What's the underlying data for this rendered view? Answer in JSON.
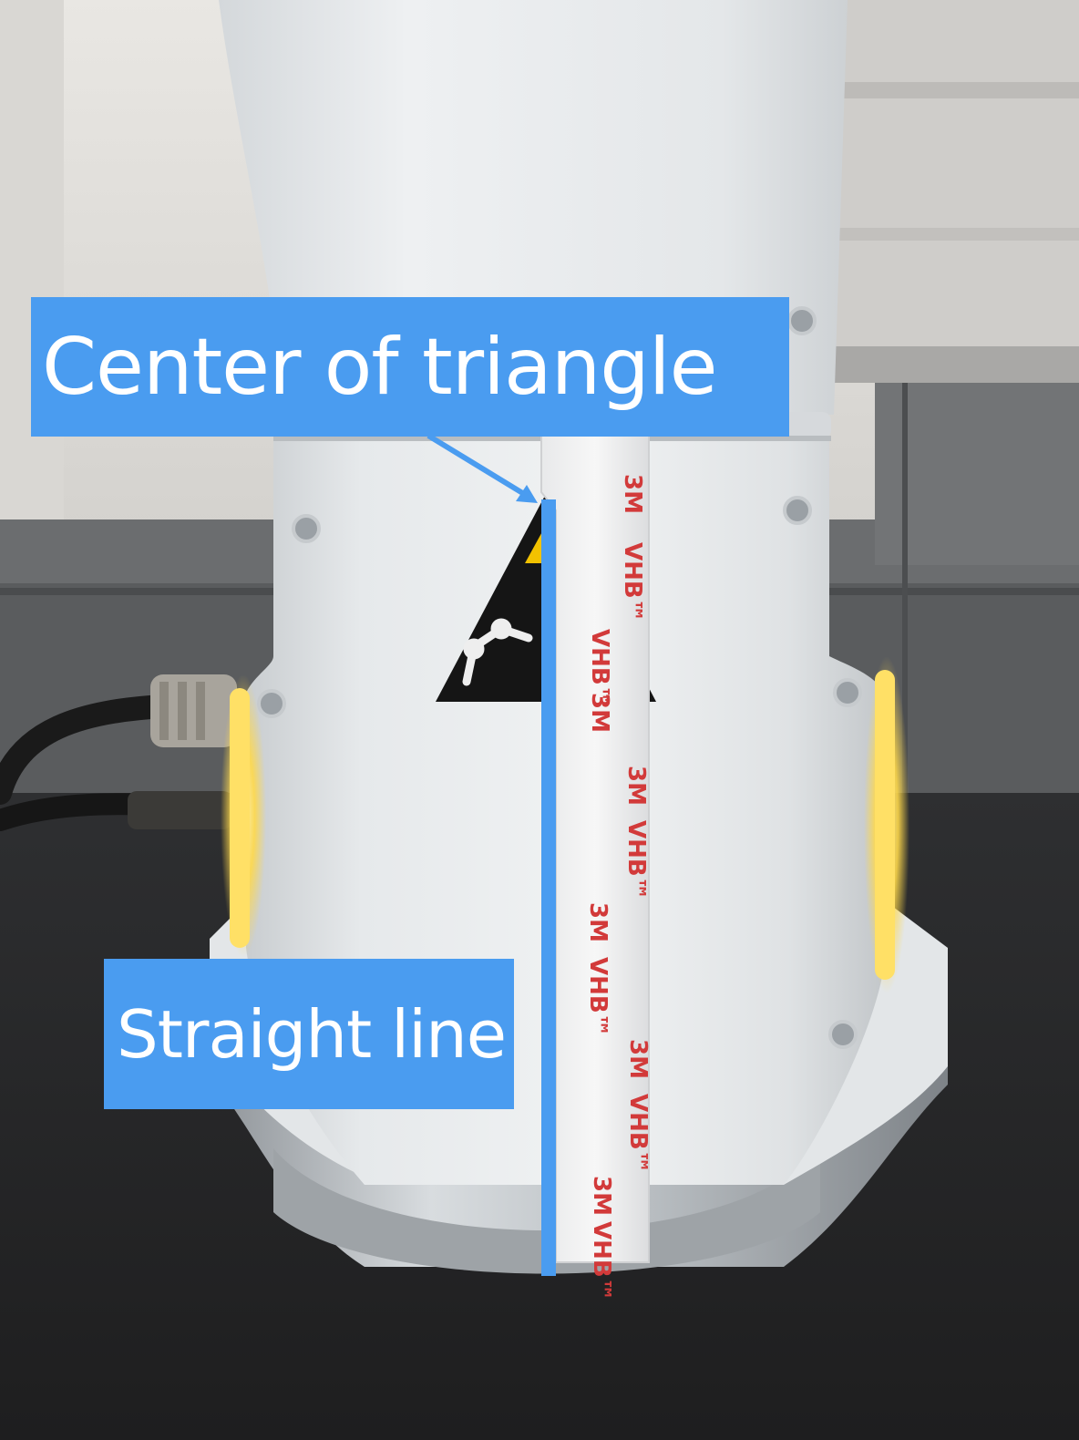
{
  "annotations": {
    "top_label": "Center of  triangle",
    "bottom_label": "Straight line"
  },
  "tape": {
    "brand_text": "3M",
    "product_text": "VHB™"
  },
  "colors": {
    "callout_bg": "#4a9cf0",
    "callout_text": "#ffffff",
    "marker_line": "#4a9cf0",
    "led_glow": "#ffd94a",
    "tape_print": "#d23a3a"
  }
}
